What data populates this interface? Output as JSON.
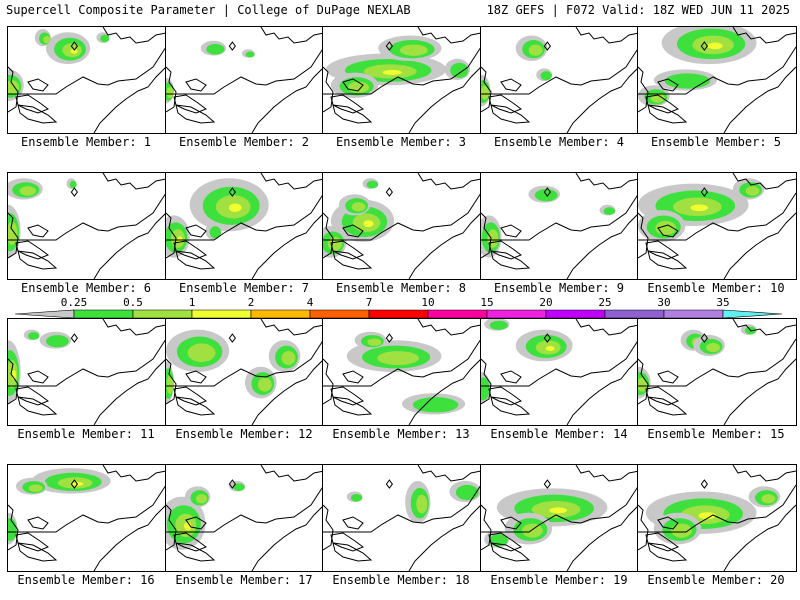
{
  "header": {
    "title_left": "Supercell Composite Parameter | College of DuPage NEXLAB",
    "title_right": "18Z GEFS | F072 Valid: 18Z WED JUN 11 2025"
  },
  "panels": [
    {
      "label": "Ensemble Member: 1",
      "blobs": [
        [
          0.38,
          0.2,
          0.14,
          0.15,
          3
        ],
        [
          0.22,
          0.1,
          0.05,
          0.08,
          2
        ],
        [
          0.0,
          0.55,
          0.1,
          0.15,
          2
        ],
        [
          0.6,
          0.1,
          0.04,
          0.05,
          1
        ]
      ]
    },
    {
      "label": "Ensemble Member: 2",
      "blobs": [
        [
          0.3,
          0.2,
          0.08,
          0.07,
          1
        ],
        [
          0.0,
          0.6,
          0.05,
          0.12,
          2
        ],
        [
          0.52,
          0.25,
          0.04,
          0.04,
          1
        ]
      ]
    },
    {
      "label": "Ensemble Member: 3",
      "blobs": [
        [
          0.4,
          0.4,
          0.38,
          0.15,
          3
        ],
        [
          0.55,
          0.2,
          0.2,
          0.12,
          2
        ],
        [
          0.2,
          0.55,
          0.15,
          0.12,
          2
        ],
        [
          0.85,
          0.4,
          0.08,
          0.1,
          1
        ]
      ]
    },
    {
      "label": "Ensemble Member: 4",
      "blobs": [
        [
          0.32,
          0.2,
          0.1,
          0.12,
          2
        ],
        [
          0.4,
          0.45,
          0.05,
          0.06,
          1
        ],
        [
          0.0,
          0.6,
          0.06,
          0.15,
          2
        ]
      ]
    },
    {
      "label": "Ensemble Member: 5",
      "blobs": [
        [
          0.45,
          0.15,
          0.3,
          0.2,
          3
        ],
        [
          0.3,
          0.5,
          0.2,
          0.1,
          1
        ],
        [
          0.1,
          0.65,
          0.1,
          0.1,
          2
        ]
      ]
    },
    {
      "label": "Ensemble Member: 6",
      "blobs": [
        [
          0.1,
          0.15,
          0.12,
          0.1,
          2
        ],
        [
          0.0,
          0.55,
          0.08,
          0.25,
          2
        ],
        [
          0.4,
          0.1,
          0.03,
          0.05,
          1
        ]
      ]
    },
    {
      "label": "Ensemble Member: 7",
      "blobs": [
        [
          0.4,
          0.3,
          0.25,
          0.25,
          3
        ],
        [
          0.05,
          0.6,
          0.1,
          0.2,
          3
        ],
        [
          0.3,
          0.55,
          0.05,
          0.08,
          1
        ]
      ]
    },
    {
      "label": "Ensemble Member: 8",
      "blobs": [
        [
          0.25,
          0.45,
          0.2,
          0.2,
          4
        ],
        [
          0.2,
          0.3,
          0.1,
          0.1,
          2
        ],
        [
          0.05,
          0.65,
          0.1,
          0.15,
          2
        ],
        [
          0.3,
          0.1,
          0.05,
          0.05,
          1
        ]
      ]
    },
    {
      "label": "Ensemble Member: 9",
      "blobs": [
        [
          0.4,
          0.2,
          0.1,
          0.08,
          1
        ],
        [
          0.05,
          0.6,
          0.08,
          0.2,
          2
        ],
        [
          0.8,
          0.35,
          0.05,
          0.05,
          1
        ]
      ]
    },
    {
      "label": "Ensemble Member: 10",
      "blobs": [
        [
          0.35,
          0.3,
          0.35,
          0.2,
          4
        ],
        [
          0.15,
          0.5,
          0.15,
          0.15,
          2
        ],
        [
          0.7,
          0.15,
          0.1,
          0.1,
          2
        ]
      ]
    },
    {
      "label": "Ensemble Member: 11",
      "blobs": [
        [
          0.0,
          0.5,
          0.08,
          0.3,
          3
        ],
        [
          0.3,
          0.2,
          0.1,
          0.08,
          1
        ],
        [
          0.15,
          0.15,
          0.05,
          0.05,
          1
        ]
      ]
    },
    {
      "label": "Ensemble Member: 12",
      "blobs": [
        [
          0.2,
          0.3,
          0.2,
          0.2,
          2
        ],
        [
          0.75,
          0.35,
          0.1,
          0.15,
          2
        ],
        [
          0.6,
          0.6,
          0.1,
          0.15,
          2
        ],
        [
          0.0,
          0.6,
          0.05,
          0.2,
          2
        ]
      ]
    },
    {
      "label": "Ensemble Member: 13",
      "blobs": [
        [
          0.45,
          0.35,
          0.3,
          0.15,
          2
        ],
        [
          0.3,
          0.2,
          0.1,
          0.08,
          2
        ],
        [
          0.7,
          0.8,
          0.2,
          0.1,
          1
        ]
      ]
    },
    {
      "label": "Ensemble Member: 14",
      "blobs": [
        [
          0.4,
          0.25,
          0.18,
          0.15,
          3
        ],
        [
          0.1,
          0.05,
          0.08,
          0.06,
          1
        ],
        [
          0.0,
          0.65,
          0.06,
          0.15,
          1
        ]
      ]
    },
    {
      "label": "Ensemble Member: 15",
      "blobs": [
        [
          0.35,
          0.2,
          0.08,
          0.1,
          2
        ],
        [
          0.45,
          0.25,
          0.1,
          0.1,
          2
        ],
        [
          0.0,
          0.6,
          0.08,
          0.15,
          2
        ],
        [
          0.7,
          0.1,
          0.05,
          0.05,
          1
        ]
      ]
    },
    {
      "label": "Ensemble Member: 16",
      "blobs": [
        [
          0.4,
          0.15,
          0.25,
          0.12,
          3
        ],
        [
          0.15,
          0.2,
          0.1,
          0.08,
          2
        ],
        [
          0.0,
          0.6,
          0.06,
          0.15,
          1
        ]
      ]
    },
    {
      "label": "Ensemble Member: 17",
      "blobs": [
        [
          0.1,
          0.55,
          0.15,
          0.25,
          3
        ],
        [
          0.2,
          0.3,
          0.08,
          0.1,
          2
        ],
        [
          0.45,
          0.2,
          0.05,
          0.05,
          1
        ]
      ]
    },
    {
      "label": "Ensemble Member: 18",
      "blobs": [
        [
          0.6,
          0.35,
          0.08,
          0.2,
          2
        ],
        [
          0.9,
          0.25,
          0.1,
          0.1,
          1
        ],
        [
          0.2,
          0.3,
          0.05,
          0.05,
          1
        ]
      ]
    },
    {
      "label": "Ensemble Member: 19",
      "blobs": [
        [
          0.45,
          0.4,
          0.35,
          0.18,
          4
        ],
        [
          0.3,
          0.6,
          0.15,
          0.15,
          2
        ],
        [
          0.1,
          0.7,
          0.08,
          0.08,
          1
        ]
      ]
    },
    {
      "label": "Ensemble Member: 20",
      "blobs": [
        [
          0.4,
          0.45,
          0.35,
          0.2,
          4
        ],
        [
          0.25,
          0.6,
          0.15,
          0.15,
          2
        ],
        [
          0.8,
          0.3,
          0.1,
          0.1,
          2
        ]
      ]
    }
  ],
  "legend": {
    "levels": [
      "0.25",
      "0.5",
      "1",
      "2",
      "4",
      "7",
      "10",
      "15",
      "20",
      "25",
      "30",
      "35"
    ],
    "colors": [
      "#c8c8c8",
      "#3ee03e",
      "#a0e040",
      "#f0ff30",
      "#ffb800",
      "#ff6000",
      "#ff0000",
      "#ff00a0",
      "#f020e0",
      "#c000ff",
      "#9060d0",
      "#b080e0",
      "#60f0f0"
    ]
  }
}
